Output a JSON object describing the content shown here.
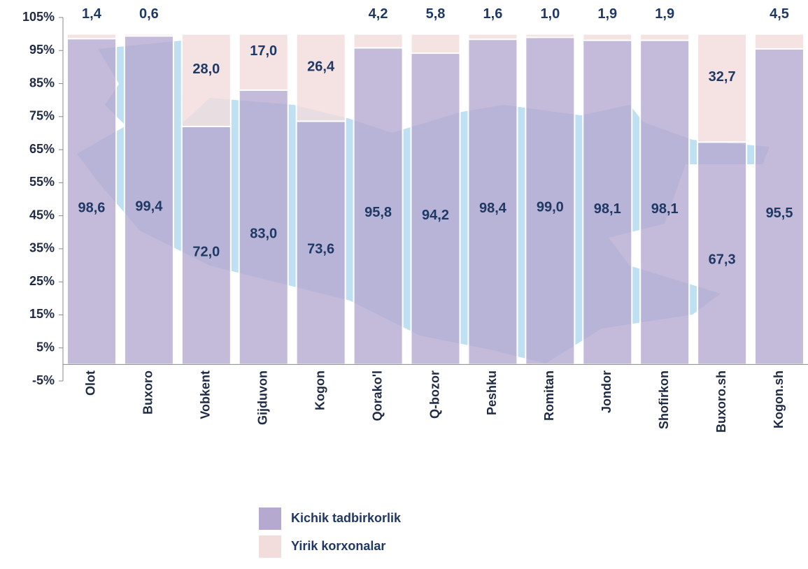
{
  "chart_data": {
    "type": "stacked_bar",
    "categories": [
      "Olot",
      "Buxoro",
      "Vobkent",
      "Gijduvon",
      "Kogon",
      "Qorako'l",
      "Q-bozor",
      "Peshku",
      "Romitan",
      "Jondor",
      "Shofirkon",
      "Buxoro.sh",
      "Kogon.sh"
    ],
    "series": [
      {
        "name": "Kichik tadbirkorlik",
        "color": "#b5a9cf",
        "values": [
          98.6,
          99.4,
          72.0,
          83.0,
          73.6,
          95.8,
          94.2,
          98.4,
          99.0,
          98.1,
          98.1,
          67.3,
          95.5
        ],
        "value_labels": [
          "98,6",
          "99,4",
          "72,0",
          "83,0",
          "73,6",
          "95,8",
          "94,2",
          "98,4",
          "99,0",
          "98,1",
          "98,1",
          "67,3",
          "95,5"
        ]
      },
      {
        "name": "Yirik korxonalar",
        "color": "#f3dcdc",
        "values": [
          1.4,
          0.6,
          28.0,
          17.0,
          26.4,
          4.2,
          5.8,
          1.6,
          1.0,
          1.9,
          1.9,
          32.7,
          4.5
        ],
        "value_labels": [
          "1,4",
          "0,6",
          "28,0",
          "17,0",
          "26,4",
          "4,2",
          "5,8",
          "1,6",
          "1,0",
          "1,9",
          "1,9",
          "32,7",
          "4,5"
        ]
      }
    ],
    "ylim": [
      -5,
      105
    ],
    "yticks": [
      {
        "value": -5,
        "label": "-5%"
      },
      {
        "value": 5,
        "label": "5%"
      },
      {
        "value": 15,
        "label": "15%"
      },
      {
        "value": 25,
        "label": "25%"
      },
      {
        "value": 35,
        "label": "35%"
      },
      {
        "value": 45,
        "label": "45%"
      },
      {
        "value": 55,
        "label": "55%"
      },
      {
        "value": 65,
        "label": "65%"
      },
      {
        "value": 75,
        "label": "75%"
      },
      {
        "value": 85,
        "label": "85%"
      },
      {
        "value": 95,
        "label": "95%"
      },
      {
        "value": 105,
        "label": "105%"
      }
    ]
  }
}
